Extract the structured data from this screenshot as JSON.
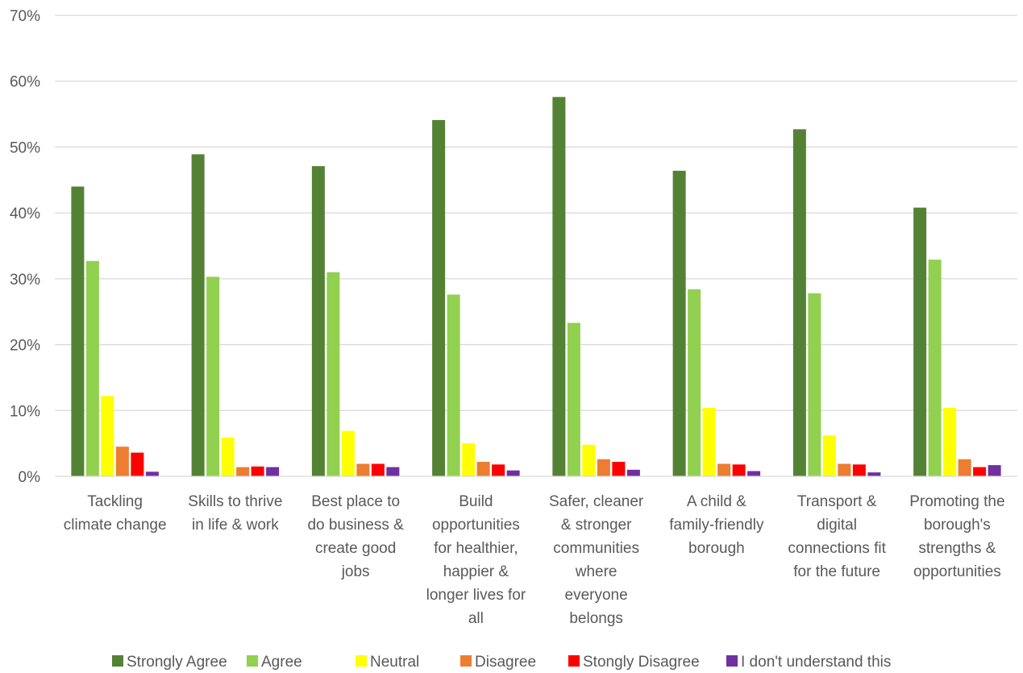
{
  "chart_data": {
    "type": "bar",
    "categories": [
      [
        "Tackling",
        "climate change"
      ],
      [
        "Skills to thrive",
        "in life & work"
      ],
      [
        "Best place to",
        "do business &",
        "create good",
        "jobs"
      ],
      [
        "Build",
        "opportunities",
        "for healthier,",
        "happier &",
        "longer lives for",
        "all"
      ],
      [
        "Safer, cleaner",
        "& stronger",
        "communities",
        "where",
        "everyone",
        "belongs"
      ],
      [
        "A child &",
        "family-friendly",
        "borough"
      ],
      [
        "Transport &",
        "digital",
        "connections fit",
        "for the future"
      ],
      [
        "Promoting the",
        "borough's",
        "strengths &",
        "opportunities"
      ]
    ],
    "series": [
      {
        "name": "Strongly Agree",
        "color": "#548235",
        "values": [
          44.0,
          48.9,
          47.1,
          54.1,
          57.6,
          46.4,
          52.7,
          40.8
        ]
      },
      {
        "name": "Agree",
        "color": "#92D050",
        "values": [
          32.7,
          30.3,
          31.0,
          27.6,
          23.3,
          28.4,
          27.8,
          32.9
        ]
      },
      {
        "name": "Neutral",
        "color": "#FFFF00",
        "values": [
          12.2,
          5.9,
          6.9,
          5.0,
          4.8,
          10.4,
          6.2,
          10.4
        ]
      },
      {
        "name": "Disagree",
        "color": "#ED7D31",
        "values": [
          4.5,
          1.4,
          1.9,
          2.2,
          2.6,
          1.9,
          1.9,
          2.6
        ]
      },
      {
        "name": "Stongly Disagree",
        "color": "#FF0000",
        "values": [
          3.6,
          1.5,
          1.9,
          1.8,
          2.2,
          1.8,
          1.8,
          1.4
        ]
      },
      {
        "name": "I don't understand this",
        "color": "#7030A0",
        "values": [
          0.7,
          1.4,
          1.4,
          0.9,
          1.0,
          0.8,
          0.6,
          1.7
        ]
      }
    ],
    "ylim": [
      0,
      70
    ],
    "yticks": [
      0,
      10,
      20,
      30,
      40,
      50,
      60,
      70
    ],
    "ytick_format": "percent",
    "grid": true,
    "legend_position": "bottom"
  }
}
